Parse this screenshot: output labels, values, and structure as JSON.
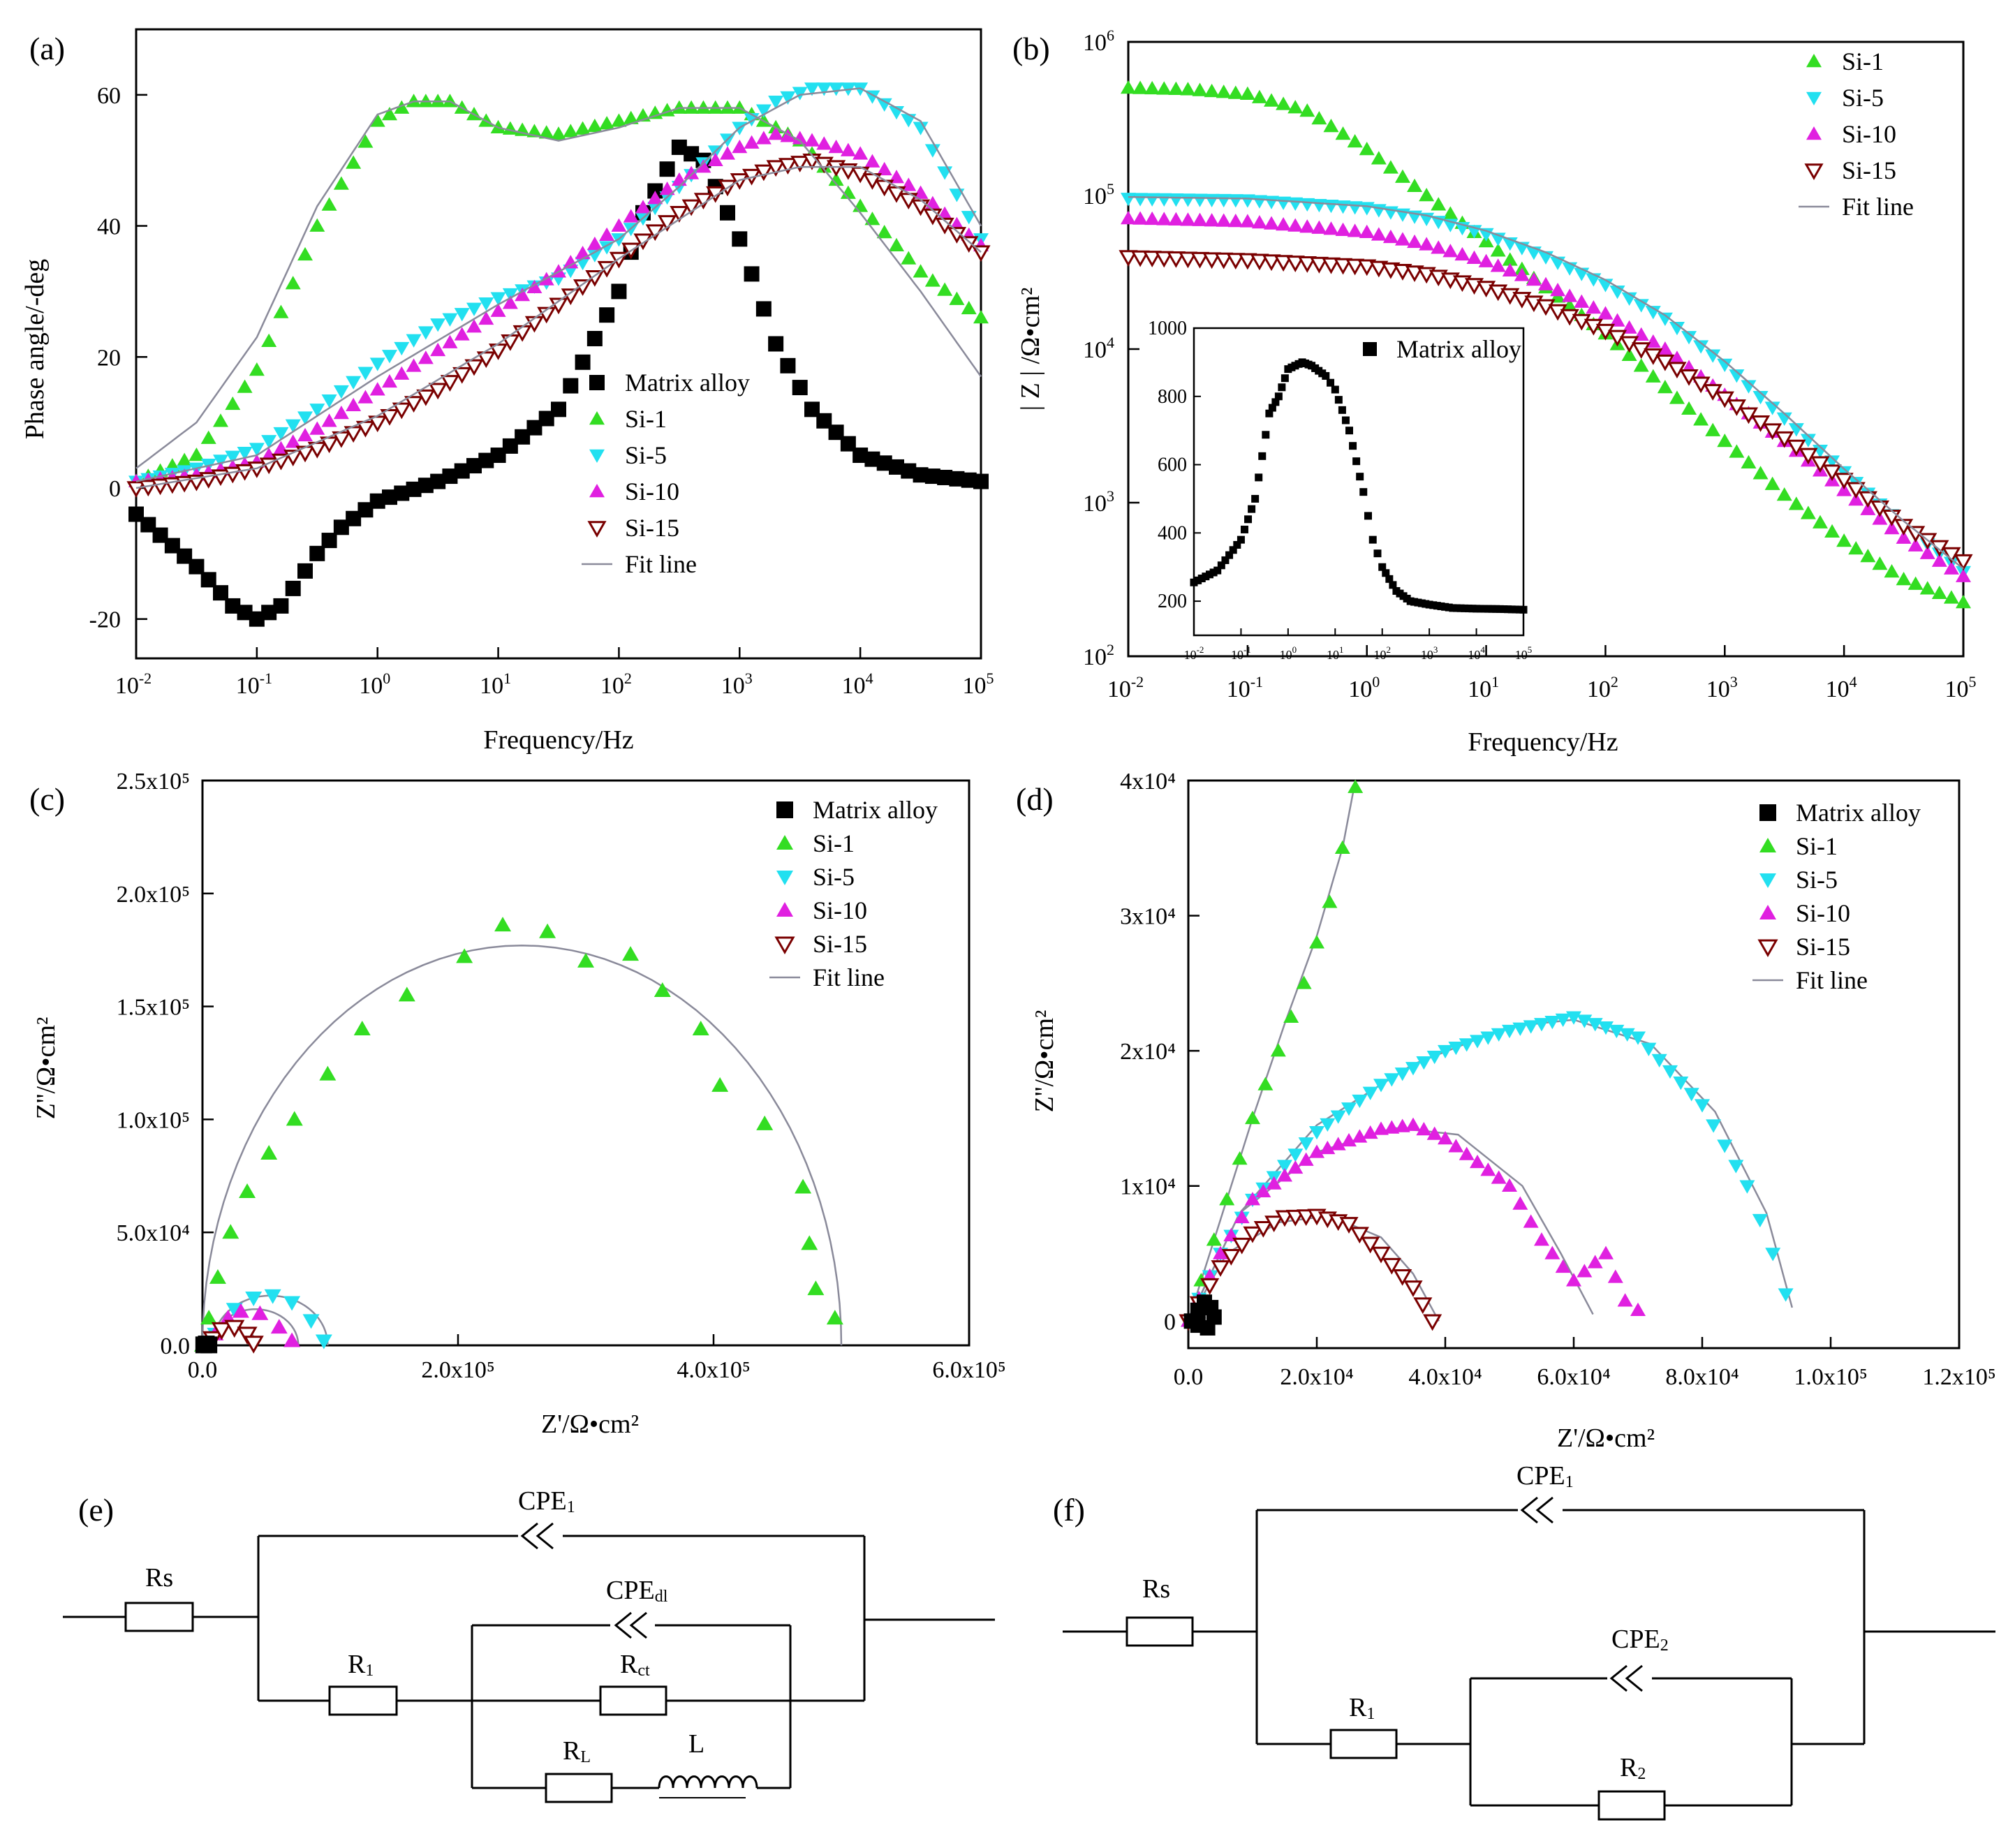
{
  "colors": {
    "Matrix alloy": "#000000",
    "Si-1": "#33dd22",
    "Si-5": "#22e0f0",
    "Si-10": "#e020e0",
    "Si-15": "#7a0000",
    "Fit line": "#8a8a9a"
  },
  "chart_data": [
    {
      "id": "a",
      "panel_label": "(a)",
      "type": "scatter",
      "xscale": "log",
      "xlim_exp": [
        -2,
        5
      ],
      "ylim": [
        -26,
        70
      ],
      "yticks": [
        -20,
        0,
        20,
        40,
        60
      ],
      "xlabel": "Frequency/Hz",
      "ylabel": "Phase angle/-deg",
      "legend": [
        "Matrix alloy",
        "Si-1",
        "Si-5",
        "Si-10",
        "Si-15",
        "Fit line"
      ],
      "series": [
        {
          "name": "Matrix alloy",
          "marker": "square",
          "log_x": [
            -2,
            -1.5,
            -1.2,
            -1,
            -0.8,
            -0.5,
            -0.3,
            0,
            0.5,
            1,
            1.5,
            2,
            2.2,
            2.5,
            2.7,
            3,
            3.3,
            3.6,
            4,
            4.5,
            5
          ],
          "y": [
            -4,
            -12,
            -18,
            -20,
            -18,
            -10,
            -6,
            -2,
            1,
            5,
            12,
            30,
            42,
            52,
            50,
            38,
            22,
            12,
            5,
            2,
            1
          ]
        },
        {
          "name": "Si-1",
          "marker": "triangle-up",
          "log_x": [
            -2,
            -1.5,
            -1,
            -0.5,
            0,
            0.3,
            0.6,
            1,
            1.5,
            2,
            2.5,
            3,
            3.5,
            4,
            4.5,
            5
          ],
          "y": [
            1,
            5,
            18,
            40,
            56,
            59,
            59,
            55,
            54,
            56,
            58,
            58,
            53,
            43,
            33,
            26
          ]
        },
        {
          "name": "Si-5",
          "marker": "triangle-down",
          "log_x": [
            -2,
            -1.5,
            -1,
            -0.5,
            0,
            0.5,
            1,
            1.5,
            2,
            2.5,
            3,
            3.3,
            3.6,
            4,
            4.5,
            5
          ],
          "y": [
            1,
            3,
            6,
            12,
            19,
            25,
            29,
            32,
            38,
            46,
            55,
            59,
            61,
            61,
            55,
            38
          ]
        },
        {
          "name": "Si-10",
          "marker": "triangle-up",
          "log_x": [
            -2,
            -1.5,
            -1,
            -0.5,
            0,
            0.5,
            1,
            1.5,
            2,
            2.5,
            3,
            3.3,
            3.6,
            4,
            4.5,
            5
          ],
          "y": [
            1,
            2,
            4,
            9,
            15,
            21,
            27,
            33,
            40,
            47,
            52,
            54,
            53,
            51,
            45,
            37
          ]
        },
        {
          "name": "Si-15",
          "marker": "triangle-down-open",
          "log_x": [
            -2,
            -1.5,
            -1,
            -0.5,
            0,
            0.5,
            1,
            1.5,
            2,
            2.5,
            3,
            3.3,
            3.6,
            4,
            4.5,
            5
          ],
          "y": [
            0,
            1,
            3,
            6,
            10,
            15,
            21,
            28,
            35,
            42,
            47,
            49,
            50,
            48,
            43,
            36
          ]
        },
        {
          "name": "Fit line",
          "marker": "line",
          "log_x": [
            -2,
            -1.5,
            -1,
            -0.5,
            0,
            0.3,
            0.6,
            1,
            1.5,
            2,
            2.5,
            3,
            3.5,
            4,
            4.5,
            5
          ],
          "y": [
            3,
            10,
            23,
            43,
            57,
            59,
            59,
            55,
            53,
            55,
            58,
            58,
            53,
            42,
            30,
            17
          ]
        },
        {
          "name": "Fit line",
          "marker": "line",
          "log_x": [
            -2,
            -1,
            0,
            1,
            2,
            2.5,
            3,
            3.5,
            4,
            4.5,
            5
          ],
          "y": [
            1,
            5,
            17,
            28,
            38,
            46,
            55,
            60,
            61,
            56,
            40
          ]
        },
        {
          "name": "Fit line",
          "marker": "line",
          "log_x": [
            -2,
            -1,
            0,
            1,
            2,
            3,
            3.5,
            4,
            4.5,
            5
          ],
          "y": [
            0,
            3,
            11,
            22,
            35,
            47,
            49,
            49,
            44,
            36
          ]
        }
      ]
    },
    {
      "id": "b",
      "panel_label": "(b)",
      "type": "scatter",
      "xscale": "log",
      "yscale": "log",
      "xlim_exp": [
        -2,
        5
      ],
      "ylim_exp": [
        2,
        6
      ],
      "xlabel": "Frequency/Hz",
      "ylabel": "| Z | /Ω•cm²",
      "legend": [
        "Si-1",
        "Si-5",
        "Si-10",
        "Si-15",
        "Fit line"
      ],
      "series": [
        {
          "name": "Si-1",
          "marker": "triangle-up",
          "log_x": [
            -2,
            -1.5,
            -1,
            -0.5,
            0,
            0.5,
            1,
            1.5,
            2,
            2.5,
            3,
            3.5,
            4,
            4.5,
            5
          ],
          "log_y": [
            5.7,
            5.69,
            5.66,
            5.55,
            5.3,
            5.0,
            4.7,
            4.4,
            4.1,
            3.75,
            3.4,
            3.05,
            2.75,
            2.5,
            2.35
          ]
        },
        {
          "name": "Si-5",
          "marker": "triangle-down",
          "log_x": [
            -2,
            -1,
            0,
            0.5,
            1,
            1.5,
            2,
            2.5,
            3,
            3.5,
            4,
            4.5,
            5
          ],
          "log_y": [
            4.98,
            4.97,
            4.92,
            4.85,
            4.75,
            4.6,
            4.42,
            4.2,
            3.9,
            3.55,
            3.2,
            2.85,
            2.55
          ]
        },
        {
          "name": "Si-10",
          "marker": "triangle-up",
          "log_x": [
            -2,
            -1,
            0,
            0.5,
            1,
            1.5,
            2,
            2.5,
            3,
            3.5,
            4,
            4.5,
            5
          ],
          "log_y": [
            4.85,
            4.83,
            4.76,
            4.68,
            4.57,
            4.42,
            4.23,
            4.0,
            3.7,
            3.4,
            3.08,
            2.77,
            2.52
          ]
        },
        {
          "name": "Si-15",
          "marker": "triangle-down-open",
          "log_x": [
            -2,
            -1,
            0,
            0.5,
            1,
            1.5,
            2,
            2.5,
            3,
            3.5,
            4,
            4.5,
            5
          ],
          "log_y": [
            4.6,
            4.58,
            4.54,
            4.49,
            4.4,
            4.28,
            4.12,
            3.92,
            3.68,
            3.42,
            3.15,
            2.85,
            2.62
          ]
        },
        {
          "name": "Fit line",
          "marker": "line",
          "log_x": [
            -2,
            -1,
            0,
            0.5,
            1,
            1.5,
            2,
            2.5,
            3,
            3.5,
            4,
            4.5,
            5
          ],
          "log_y": [
            4.99,
            4.98,
            4.93,
            4.87,
            4.77,
            4.63,
            4.45,
            4.22,
            3.92,
            3.58,
            3.22,
            2.88,
            2.57
          ]
        }
      ]
    },
    {
      "id": "b-inset",
      "type": "scatter",
      "xscale": "log",
      "xlim_exp": [
        -2,
        5
      ],
      "ylim": [
        100,
        1000
      ],
      "yticks": [
        200,
        400,
        600,
        800,
        1000
      ],
      "legend": [
        "Matrix alloy"
      ],
      "series": [
        {
          "name": "Matrix alloy",
          "marker": "square",
          "log_x": [
            -2,
            -1.5,
            -1,
            -0.7,
            -0.4,
            -0.2,
            0,
            0.3,
            0.5,
            0.8,
            1,
            1.3,
            1.6,
            1.8,
            2,
            2.3,
            2.6,
            3,
            3.5,
            4,
            4.5,
            5
          ],
          "y": [
            255,
            290,
            380,
            500,
            750,
            800,
            880,
            900,
            890,
            860,
            820,
            700,
            520,
            380,
            300,
            230,
            200,
            190,
            180,
            178,
            177,
            175
          ]
        }
      ]
    },
    {
      "id": "c",
      "panel_label": "(c)",
      "type": "scatter",
      "xlim": [
        0,
        600000
      ],
      "ylim": [
        0,
        250000
      ],
      "xticks": [
        "0.0",
        "2.0x10⁵",
        "4.0x10⁵",
        "6.0x10⁵"
      ],
      "yticks": [
        "0.0",
        "5.0x10⁴",
        "1.0x10⁵",
        "1.5x10⁵",
        "2.0x10⁵",
        "2.5x10⁵"
      ],
      "xlabel": "Z'/Ω•cm²",
      "ylabel": "Z''/Ω•cm²",
      "legend": [
        "Matrix alloy",
        "Si-1",
        "Si-5",
        "Si-10",
        "Si-15",
        "Fit line"
      ],
      "series": [
        {
          "name": "Si-1",
          "marker": "triangle-up",
          "x": [
            0,
            5000,
            12000,
            22000,
            35000,
            52000,
            72000,
            98000,
            125000,
            160000,
            205000,
            235000,
            270000,
            300000,
            335000,
            360000,
            390000,
            405000,
            440000,
            470000,
            475000,
            480000,
            495000
          ],
          "y": [
            0,
            12000,
            30000,
            50000,
            68000,
            85000,
            100000,
            120000,
            140000,
            155000,
            172000,
            186000,
            183000,
            170000,
            173000,
            157000,
            140000,
            115000,
            98000,
            70000,
            45000,
            25000,
            12000
          ]
        },
        {
          "name": "Si-5",
          "marker": "triangle-down",
          "x": [
            10000,
            25000,
            40000,
            55000,
            70000,
            85000,
            95000
          ],
          "y": [
            5000,
            16000,
            21000,
            22000,
            19000,
            11000,
            2000
          ]
        },
        {
          "name": "Si-10",
          "marker": "triangle-up",
          "x": [
            10000,
            20000,
            30000,
            45000,
            60000,
            70000
          ],
          "y": [
            5000,
            12000,
            15000,
            14000,
            8000,
            2000
          ]
        },
        {
          "name": "Si-15",
          "marker": "triangle-down-open",
          "x": [
            8000,
            15000,
            25000,
            35000,
            40000
          ],
          "y": [
            3000,
            7000,
            8000,
            5000,
            1000
          ]
        },
        {
          "name": "Matrix alloy",
          "marker": "square",
          "x": [
            1000,
            3000,
            5000
          ],
          "y": [
            200,
            600,
            200
          ]
        }
      ]
    },
    {
      "id": "d",
      "panel_label": "(d)",
      "type": "scatter",
      "xlim": [
        0,
        120000
      ],
      "ylim": [
        -2000,
        40000
      ],
      "xticks": [
        "0.0",
        "2.0x10⁴",
        "4.0x10⁴",
        "6.0x10⁴",
        "8.0x10⁴",
        "1.0x10⁵",
        "1.2x10⁵"
      ],
      "yticks": [
        "0",
        "1x10⁴",
        "2x10⁴",
        "3x10⁴",
        "4x10⁴"
      ],
      "xlabel": "Z'/Ω•cm²",
      "ylabel": "Z''/Ω•cm²",
      "legend": [
        "Matrix alloy",
        "Si-1",
        "Si-5",
        "Si-10",
        "Si-15",
        "Fit line"
      ],
      "series": [
        {
          "name": "Si-1",
          "marker": "triangle-up",
          "x": [
            0,
            2000,
            4000,
            6000,
            8000,
            10000,
            12000,
            14000,
            16000,
            18000,
            20000,
            22000,
            24000,
            26000
          ],
          "y": [
            0,
            3000,
            6000,
            9000,
            12000,
            15000,
            17500,
            20000,
            22500,
            25000,
            28000,
            31000,
            35000,
            39500
          ]
        },
        {
          "name": "Si-5",
          "marker": "triangle-down",
          "x": [
            0,
            5000,
            10000,
            20000,
            30000,
            40000,
            50000,
            60000,
            70000,
            80000,
            87000,
            91000,
            93000
          ],
          "y": [
            0,
            5000,
            9000,
            14000,
            17500,
            20000,
            21500,
            22500,
            21000,
            16000,
            10000,
            5000,
            2000
          ]
        },
        {
          "name": "Si-10",
          "marker": "triangle-up",
          "x": [
            0,
            5000,
            10000,
            20000,
            30000,
            35000,
            40000,
            50000,
            55000,
            60000,
            65000,
            68000,
            70000
          ],
          "y": [
            0,
            5000,
            9000,
            12500,
            14200,
            14500,
            13500,
            10000,
            6000,
            3000,
            5000,
            1500,
            800
          ]
        },
        {
          "name": "Si-15",
          "marker": "triangle-down-open",
          "x": [
            0,
            5000,
            10000,
            15000,
            20000,
            25000,
            30000,
            35000,
            38000
          ],
          "y": [
            0,
            4000,
            6500,
            7700,
            7800,
            7200,
            5000,
            2500,
            0
          ]
        },
        {
          "name": "Matrix alloy",
          "marker": "square",
          "x": [
            500,
            1500,
            2500,
            3500,
            4000,
            3000,
            1500
          ],
          "y": [
            0,
            800,
            1400,
            1000,
            300,
            -500,
            -300
          ]
        }
      ]
    }
  ],
  "circuits": {
    "e": {
      "panel_label": "(e)",
      "labels": {
        "Rs": "Rs",
        "CPE1": "CPE",
        "CPE1_sub": "1",
        "CPEdl": "CPE",
        "CPEdl_sub": "dl",
        "R1": "R",
        "R1_sub": "1",
        "Rct": "R",
        "Rct_sub": "ct",
        "RL": "R",
        "RL_sub": "L",
        "L": "L"
      }
    },
    "f": {
      "panel_label": "(f)",
      "labels": {
        "Rs": "Rs",
        "CPE1": "CPE",
        "CPE1_sub": "1",
        "CPE2": "CPE",
        "CPE2_sub": "2",
        "R1": "R",
        "R1_sub": "1",
        "R2": "R",
        "R2_sub": "2"
      }
    }
  }
}
